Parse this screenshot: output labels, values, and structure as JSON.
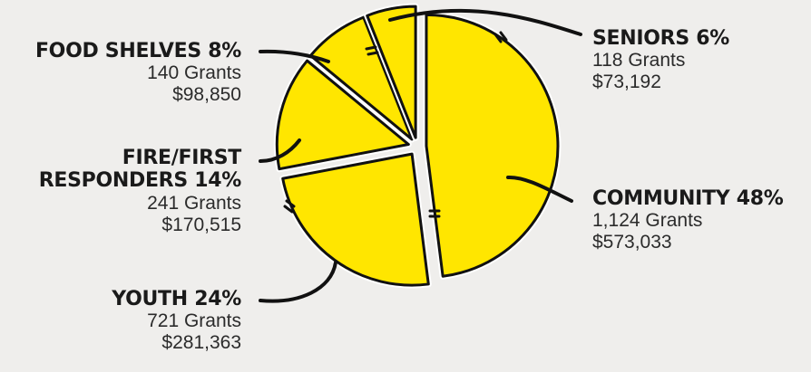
{
  "chart_data": {
    "type": "pie",
    "slices": [
      {
        "label": "COMMUNITY",
        "percent_label": "48%",
        "value": 48,
        "grants": "1,124 Grants",
        "amount": "$573,033"
      },
      {
        "label": "YOUTH",
        "percent_label": "24%",
        "value": 24,
        "grants": "721 Grants",
        "amount": "$281,363"
      },
      {
        "label": "FIRE/FIRST RESPONDERS",
        "label_line1": "FIRE/FIRST",
        "label_line2": "RESPONDERS",
        "percent_label": "14%",
        "value": 14,
        "grants": "241 Grants",
        "amount": "$170,515"
      },
      {
        "label": "FOOD SHELVES",
        "percent_label": "8%",
        "value": 8,
        "grants": "140 Grants",
        "amount": "$98,850"
      },
      {
        "label": "SENIORS",
        "percent_label": "6%",
        "value": 6,
        "grants": "118 Grants",
        "amount": "$73,192"
      }
    ],
    "colors": {
      "fill": "#ffe600",
      "outline": "#111111",
      "background": "#efeeec"
    }
  }
}
